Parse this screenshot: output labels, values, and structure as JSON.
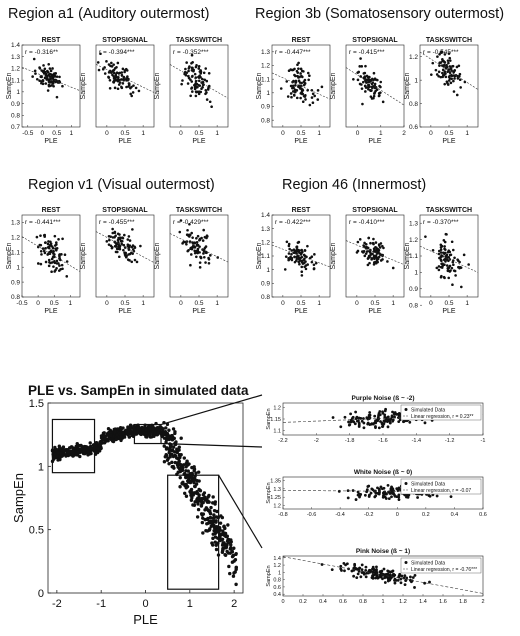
{
  "regions": [
    {
      "title": "Region a1 (Auditory outermost)",
      "panels": [
        {
          "name": "REST",
          "r": "r = -0.316**",
          "xticks": [
            -0.5,
            0,
            0.5,
            1
          ],
          "yticks": [
            0.7,
            0.8,
            0.9,
            1,
            1.1,
            1.2,
            1.3,
            1.4
          ],
          "xlim": [
            -0.7,
            1.3
          ],
          "ylim": [
            0.7,
            1.4
          ],
          "cx": 0.2,
          "cy": 1.14,
          "sx": 0.3,
          "sy": 0.08,
          "slope": -0.1,
          "intercept": 1.14,
          "seed": 11
        },
        {
          "name": "STOPSIGNAL",
          "r": "r = -0.394***",
          "xticks": [
            0,
            0.5,
            1
          ],
          "yticks": [],
          "xlim": [
            -0.3,
            1.3
          ],
          "ylim": [
            0.7,
            1.4
          ],
          "cx": 0.35,
          "cy": 1.14,
          "sx": 0.3,
          "sy": 0.09,
          "slope": -0.15,
          "intercept": 1.19,
          "seed": 12
        },
        {
          "name": "TASKSWITCH",
          "r": "r = -0.352***",
          "xticks": [
            0,
            0.5,
            1
          ],
          "yticks": [],
          "xlim": [
            -0.3,
            1.3
          ],
          "ylim": [
            0.7,
            1.4
          ],
          "cx": 0.45,
          "cy": 1.1,
          "sx": 0.3,
          "sy": 0.12,
          "slope": -0.18,
          "intercept": 1.18,
          "seed": 13
        }
      ]
    },
    {
      "title": "Region 3b (Somatosensory outermost)",
      "panels": [
        {
          "name": "REST",
          "r": "r = -0.447***",
          "xticks": [
            0,
            0.5,
            1
          ],
          "yticks": [
            0.8,
            0.9,
            1,
            1.1,
            1.2,
            1.3
          ],
          "xlim": [
            -0.3,
            1.3
          ],
          "ylim": [
            0.75,
            1.35
          ],
          "cx": 0.5,
          "cy": 1.05,
          "sx": 0.3,
          "sy": 0.1,
          "slope": -0.12,
          "intercept": 1.11,
          "seed": 21
        },
        {
          "name": "STOPSIGNAL",
          "r": "r = -0.415***",
          "xticks": [
            0,
            1,
            2
          ],
          "yticks": [],
          "xlim": [
            -0.5,
            2
          ],
          "ylim": [
            0.75,
            1.35
          ],
          "cx": 0.5,
          "cy": 1.08,
          "sx": 0.35,
          "sy": 0.09,
          "slope": -0.11,
          "intercept": 1.13,
          "seed": 22
        },
        {
          "name": "TASKSWITCH",
          "r": "r = -0.545***",
          "xticks": [
            0,
            0.5,
            1
          ],
          "yticks": [
            0.6,
            0.8,
            1,
            1.2
          ],
          "xlim": [
            -0.3,
            1.3
          ],
          "ylim": [
            0.6,
            1.3
          ],
          "cx": 0.5,
          "cy": 1.08,
          "sx": 0.28,
          "sy": 0.09,
          "slope": -0.2,
          "intercept": 1.18,
          "seed": 23
        }
      ]
    },
    {
      "title": "Region v1 (Visual outermost)",
      "panels": [
        {
          "name": "REST",
          "r": "r = -0.441***",
          "xticks": [
            -0.5,
            0,
            0.5,
            1
          ],
          "yticks": [
            0.8,
            0.9,
            1,
            1.1,
            1.2,
            1.3
          ],
          "xlim": [
            -0.5,
            1.3
          ],
          "ylim": [
            0.8,
            1.35
          ],
          "cx": 0.45,
          "cy": 1.08,
          "sx": 0.3,
          "sy": 0.08,
          "slope": -0.13,
          "intercept": 1.14,
          "seed": 31
        },
        {
          "name": "STOPSIGNAL",
          "r": "r = -0.455***",
          "xticks": [
            0,
            0.5,
            1
          ],
          "yticks": [],
          "xlim": [
            -0.3,
            1.3
          ],
          "ylim": [
            0.8,
            1.35
          ],
          "cx": 0.45,
          "cy": 1.14,
          "sx": 0.3,
          "sy": 0.07,
          "slope": -0.13,
          "intercept": 1.2,
          "seed": 32
        },
        {
          "name": "TASKSWITCH",
          "r": "r = -0.429***",
          "xticks": [
            0,
            0.5,
            1
          ],
          "yticks": [],
          "xlim": [
            -0.3,
            1.3
          ],
          "ylim": [
            0.8,
            1.35
          ],
          "cx": 0.45,
          "cy": 1.14,
          "sx": 0.3,
          "sy": 0.08,
          "slope": -0.12,
          "intercept": 1.19,
          "seed": 33
        }
      ]
    },
    {
      "title": "Region 46 (Innermost)",
      "panels": [
        {
          "name": "REST",
          "r": "r = -0.422***",
          "xticks": [
            0,
            0.5,
            1
          ],
          "yticks": [
            0.8,
            0.9,
            1,
            1.1,
            1.2,
            1.3,
            1.4
          ],
          "xlim": [
            -0.3,
            1.3
          ],
          "ylim": [
            0.8,
            1.4
          ],
          "cx": 0.45,
          "cy": 1.1,
          "sx": 0.28,
          "sy": 0.09,
          "slope": -0.1,
          "intercept": 1.15,
          "seed": 41
        },
        {
          "name": "STOPSIGNAL",
          "r": "r = -0.410***",
          "xticks": [
            0,
            0.5,
            1
          ],
          "yticks": [],
          "xlim": [
            -0.3,
            1.3
          ],
          "ylim": [
            0.8,
            1.4
          ],
          "cx": 0.45,
          "cy": 1.13,
          "sx": 0.3,
          "sy": 0.08,
          "slope": -0.11,
          "intercept": 1.18,
          "seed": 42
        },
        {
          "name": "TASKSWITCH",
          "r": "r = -0.370***",
          "xticks": [
            0,
            0.5,
            1
          ],
          "yticks": [
            0.8,
            0.9,
            1,
            1.1,
            1.2,
            1.3
          ],
          "xlim": [
            -0.3,
            1.3
          ],
          "ylim": [
            0.85,
            1.35
          ],
          "cx": 0.45,
          "cy": 1.08,
          "sx": 0.3,
          "sy": 0.09,
          "slope": -0.1,
          "intercept": 1.13,
          "seed": 43
        }
      ]
    }
  ],
  "small_axis_labels": {
    "x": "PLE",
    "y": "SampEn"
  },
  "simulated": {
    "title": "PLE vs. SampEn in simulated data",
    "xlabel": "PLE",
    "ylabel": "SampEn",
    "xticks": [
      -2,
      -1,
      0,
      1,
      2
    ],
    "yticks": [
      0,
      0.5,
      1,
      1.5
    ],
    "xlim": [
      -2.2,
      2.2
    ],
    "ylim": [
      0,
      1.5
    ],
    "boxes": [
      {
        "x0": -2.1,
        "x1": -1.15,
        "y0": 0.95,
        "y1": 1.37
      },
      {
        "x0": -0.25,
        "x1": 0.35,
        "y0": 1.18,
        "y1": 1.33
      },
      {
        "x0": 0.5,
        "x1": 1.65,
        "y0": 0.03,
        "y1": 0.93
      }
    ],
    "seed": 7
  },
  "insets": [
    {
      "title": "Purple Noise (ß ~ -2)",
      "legend": [
        "Simulated Data",
        "Linear regression, r = 0.23**"
      ],
      "xticks": [
        -2.2,
        -2,
        -1.8,
        -1.6,
        -1.4,
        -1.2,
        -1
      ],
      "yticks": [
        1.1,
        1.15,
        1.2
      ],
      "xlim": [
        -2.2,
        -1
      ],
      "ylim": [
        1.08,
        1.22
      ],
      "cx": -1.6,
      "cy": 1.15,
      "sx": 0.18,
      "sy": 0.025,
      "line": [
        [
          -2.2,
          1.135
        ],
        [
          -1,
          1.17
        ]
      ],
      "seed": 51
    },
    {
      "title": "White Noise (ß ~ 0)",
      "legend": [
        "Simulated Data",
        "Linear regression, r = -0.07"
      ],
      "xticks": [
        -0.8,
        -0.6,
        -0.4,
        -0.2,
        0,
        0.2,
        0.4,
        0.6
      ],
      "yticks": [
        1.2,
        1.25,
        1.3,
        1.35
      ],
      "xlim": [
        -0.8,
        0.6
      ],
      "ylim": [
        1.18,
        1.37
      ],
      "cx": 0,
      "cy": 1.29,
      "sx": 0.22,
      "sy": 0.028,
      "line": [
        [
          -0.8,
          1.29
        ],
        [
          0.6,
          1.282
        ]
      ],
      "seed": 52
    },
    {
      "title": "Pink Noise (ß ~ 1)",
      "legend": [
        "Simulated Data",
        "Linear regression, r = -0.76***"
      ],
      "xticks": [
        0,
        0.2,
        0.4,
        0.6,
        0.8,
        1,
        1.2,
        1.4,
        1.6,
        1.8,
        2
      ],
      "yticks": [
        0.4,
        0.6,
        0.8,
        1,
        1.2,
        1.4
      ],
      "xlim": [
        0,
        2
      ],
      "ylim": [
        0.35,
        1.45
      ],
      "cx": 0.95,
      "cy": 1.0,
      "sx": 0.28,
      "sy": 0.12,
      "line": [
        [
          0,
          1.43
        ],
        [
          2,
          0.42
        ]
      ],
      "seed": 53
    }
  ],
  "chart_data": [
    {
      "type": "scatter",
      "title": "Region a1 (Auditory outermost)",
      "series": [
        {
          "name": "REST",
          "annotation": "r = -0.316**"
        },
        {
          "name": "STOPSIGNAL",
          "annotation": "r = -0.394***"
        },
        {
          "name": "TASKSWITCH",
          "annotation": "r = -0.352***"
        }
      ],
      "xlabel": "PLE",
      "ylabel": "SampEn",
      "ylim": [
        0.7,
        1.4
      ]
    },
    {
      "type": "scatter",
      "title": "Region 3b (Somatosensory outermost)",
      "series": [
        {
          "name": "REST",
          "annotation": "r = -0.447***"
        },
        {
          "name": "STOPSIGNAL",
          "annotation": "r = -0.415***"
        },
        {
          "name": "TASKSWITCH",
          "annotation": "r = -0.545***"
        }
      ],
      "xlabel": "PLE",
      "ylabel": "SampEn"
    },
    {
      "type": "scatter",
      "title": "Region v1 (Visual outermost)",
      "series": [
        {
          "name": "REST",
          "annotation": "r = -0.441***"
        },
        {
          "name": "STOPSIGNAL",
          "annotation": "r = -0.455***"
        },
        {
          "name": "TASKSWITCH",
          "annotation": "r = -0.429***"
        }
      ],
      "xlabel": "PLE",
      "ylabel": "SampEn"
    },
    {
      "type": "scatter",
      "title": "Region 46 (Innermost)",
      "series": [
        {
          "name": "REST",
          "annotation": "r = -0.422***"
        },
        {
          "name": "STOPSIGNAL",
          "annotation": "r = -0.410***"
        },
        {
          "name": "TASKSWITCH",
          "annotation": "r = -0.370***"
        }
      ],
      "xlabel": "PLE",
      "ylabel": "SampEn"
    },
    {
      "type": "scatter",
      "title": "PLE vs. SampEn in simulated data",
      "xlabel": "PLE",
      "ylabel": "SampEn",
      "xlim": [
        -2.2,
        2.2
      ],
      "ylim": [
        0,
        1.5
      ],
      "grid": false
    },
    {
      "type": "scatter",
      "title": "Purple Noise (ß ~ -2)",
      "series": [
        {
          "name": "Simulated Data"
        },
        {
          "name": "Linear regression, r = 0.23**"
        }
      ],
      "xlim": [
        -2.2,
        -1
      ],
      "ylim": [
        1.08,
        1.22
      ],
      "legend": "top-right"
    },
    {
      "type": "scatter",
      "title": "White Noise (ß ~ 0)",
      "series": [
        {
          "name": "Simulated Data"
        },
        {
          "name": "Linear regression, r = -0.07"
        }
      ],
      "xlim": [
        -0.8,
        0.6
      ],
      "ylim": [
        1.18,
        1.37
      ],
      "legend": "top-right"
    },
    {
      "type": "scatter",
      "title": "Pink Noise (ß ~ 1)",
      "series": [
        {
          "name": "Simulated Data"
        },
        {
          "name": "Linear regression, r = -0.76***"
        }
      ],
      "xlim": [
        0,
        2
      ],
      "ylim": [
        0.35,
        1.45
      ],
      "legend": "top-right"
    }
  ]
}
